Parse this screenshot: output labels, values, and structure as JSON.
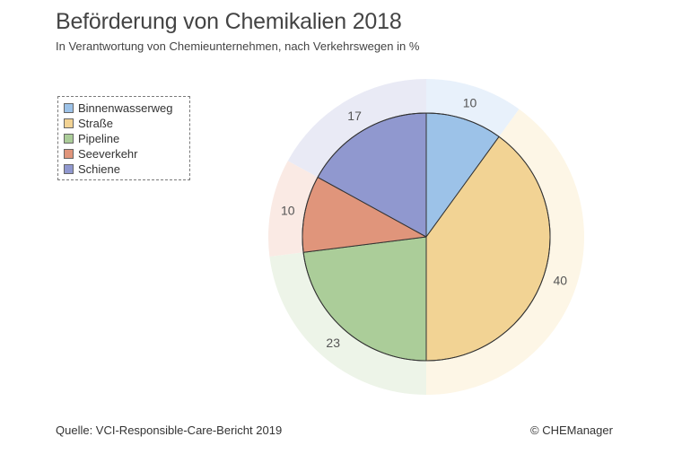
{
  "title": "Beförderung von Chemikalien 2018",
  "subtitle": "In Verantwortung von Chemieunternehmen, nach Verkehrswegen in %",
  "legend": {
    "items": [
      {
        "label": "Binnenwasserweg",
        "color": "#9cc2e8"
      },
      {
        "label": "Straße",
        "color": "#f2d394"
      },
      {
        "label": "Pipeline",
        "color": "#abcd99"
      },
      {
        "label": "Seeverkehr",
        "color": "#e0957b"
      },
      {
        "label": "Schiene",
        "color": "#9098cf"
      }
    ]
  },
  "chart_data": {
    "type": "pie",
    "title": "Beförderung von Chemikalien 2018",
    "subtitle": "In Verantwortung von Chemieunternehmen, nach Verkehrswegen in %",
    "categories": [
      "Binnenwasserweg",
      "Straße",
      "Pipeline",
      "Seeverkehr",
      "Schiene"
    ],
    "values": [
      10,
      40,
      23,
      10,
      17
    ],
    "data_labels": [
      "10",
      "40",
      "23",
      "10",
      "17"
    ],
    "colors": [
      "#9cc2e8",
      "#f2d394",
      "#abcd99",
      "#e0957b",
      "#9098cf"
    ],
    "ring_colors": [
      "#e8f1fb",
      "#fdf6e6",
      "#edf4e8",
      "#faeae4",
      "#e9eaf5"
    ],
    "start": "12 o'clock",
    "direction": "clockwise",
    "legend_position": "top-left"
  },
  "footer": {
    "source": "Quelle: VCI-Responsible-Care-Bericht 2019",
    "copyright": "© CHEManager"
  }
}
